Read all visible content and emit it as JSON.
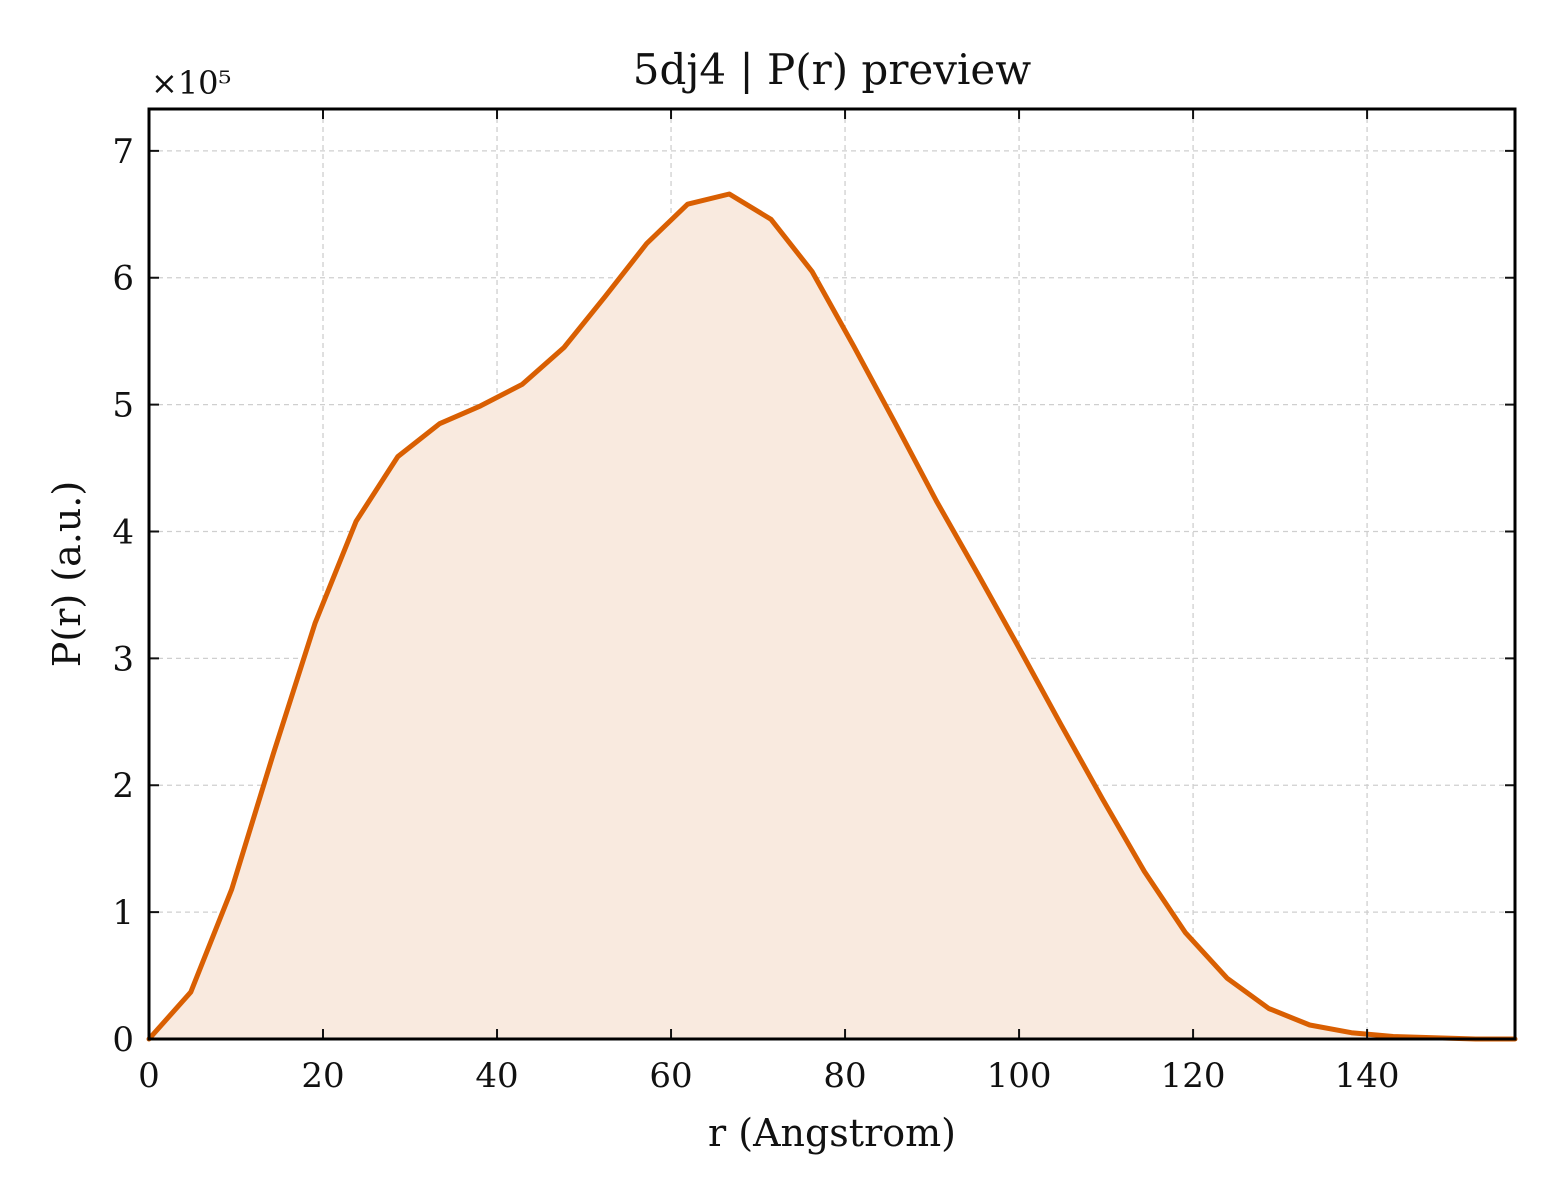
{
  "chart_data": {
    "type": "area",
    "title": "5dj4 | P(r) preview",
    "xlabel": "r (Angstrom)",
    "ylabel": "P(r) (a.u.)",
    "y_offset_label": "×10⁵",
    "xlim": [
      0,
      157
    ],
    "ylim": [
      0,
      7.33
    ],
    "x_ticks": [
      0,
      20,
      40,
      60,
      80,
      100,
      120,
      140
    ],
    "x_tick_labels": [
      "0",
      "20",
      "40",
      "60",
      "80",
      "100",
      "120",
      "140"
    ],
    "y_ticks": [
      0,
      1,
      2,
      3,
      4,
      5,
      6,
      7
    ],
    "y_tick_labels": [
      "0",
      "1",
      "2",
      "3",
      "4",
      "5",
      "6",
      "7"
    ],
    "grid": true,
    "colors": {
      "line": "#d95f02",
      "fill": "#f9eadf"
    },
    "series": [
      {
        "x": [
          0,
          4.8,
          9.5,
          14.3,
          19.1,
          23.8,
          28.6,
          33.4,
          38.1,
          42.9,
          47.7,
          52.4,
          57.2,
          61.9,
          66.7,
          71.5,
          76.2,
          81.0,
          85.8,
          90.5,
          95.3,
          100.1,
          104.8,
          109.6,
          114.4,
          119.1,
          123.9,
          128.7,
          133.4,
          138.2,
          143.0,
          147.7,
          152.5,
          157.0
        ],
        "y": [
          0,
          0.37,
          1.18,
          2.25,
          3.28,
          4.08,
          4.59,
          4.85,
          4.99,
          5.16,
          5.45,
          5.85,
          6.27,
          6.58,
          6.66,
          6.46,
          6.05,
          5.46,
          4.85,
          4.24,
          3.66,
          3.07,
          2.48,
          1.89,
          1.32,
          0.84,
          0.48,
          0.24,
          0.11,
          0.05,
          0.02,
          0.01,
          0.0,
          0.0
        ]
      }
    ]
  }
}
